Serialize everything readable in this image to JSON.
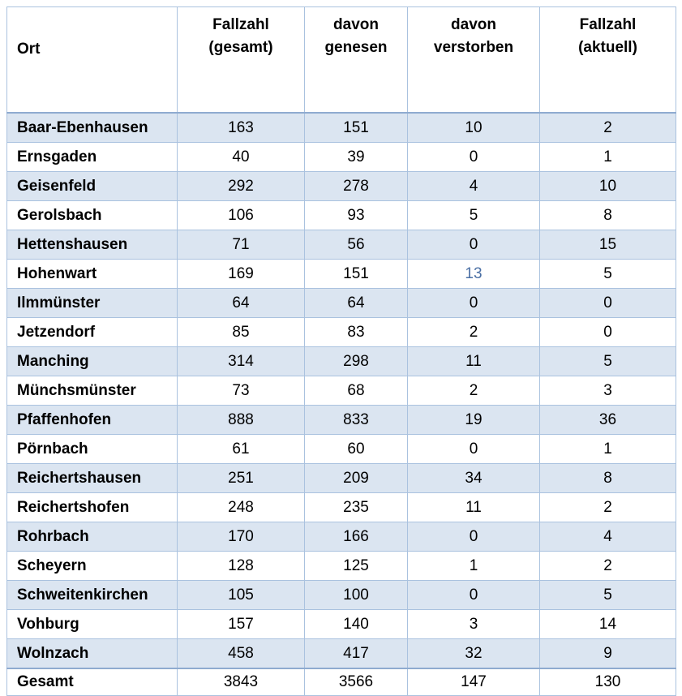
{
  "table": {
    "accent_color": "#4a6fa4",
    "stripe_color": "#dbe5f1",
    "border_color": "#aac2df",
    "heavy_border_color": "#8fabd0",
    "columns": [
      {
        "label": "Ort"
      },
      {
        "line1": "Fallzahl",
        "line2": "(gesamt)"
      },
      {
        "line1": "davon",
        "line2": "genesen"
      },
      {
        "line1": "davon",
        "line2": "verstorben"
      },
      {
        "line1": "Fallzahl",
        "line2": "(aktuell)"
      }
    ],
    "rows": [
      {
        "ort": "Baar-Ebenhausen",
        "gesamt": "163",
        "genesen": "151",
        "verstorben": "10",
        "aktuell": "2"
      },
      {
        "ort": "Ernsgaden",
        "gesamt": "40",
        "genesen": "39",
        "verstorben": "0",
        "aktuell": "1"
      },
      {
        "ort": "Geisenfeld",
        "gesamt": "292",
        "genesen": "278",
        "verstorben": "4",
        "aktuell": "10"
      },
      {
        "ort": "Gerolsbach",
        "gesamt": "106",
        "genesen": "93",
        "verstorben": "5",
        "aktuell": "8"
      },
      {
        "ort": "Hettenshausen",
        "gesamt": "71",
        "genesen": "56",
        "verstorben": "0",
        "aktuell": "15"
      },
      {
        "ort": "Hohenwart",
        "gesamt": "169",
        "genesen": "151",
        "verstorben": "13",
        "aktuell": "5"
      },
      {
        "ort": "Ilmmünster",
        "gesamt": "64",
        "genesen": "64",
        "verstorben": "0",
        "aktuell": "0"
      },
      {
        "ort": "Jetzendorf",
        "gesamt": "85",
        "genesen": "83",
        "verstorben": "2",
        "aktuell": "0"
      },
      {
        "ort": "Manching",
        "gesamt": "314",
        "genesen": "298",
        "verstorben": "11",
        "aktuell": "5"
      },
      {
        "ort": "Münchsmünster",
        "gesamt": "73",
        "genesen": "68",
        "verstorben": "2",
        "aktuell": "3"
      },
      {
        "ort": "Pfaffenhofen",
        "gesamt": "888",
        "genesen": "833",
        "verstorben": "19",
        "aktuell": "36"
      },
      {
        "ort": "Pörnbach",
        "gesamt": "61",
        "genesen": "60",
        "verstorben": "0",
        "aktuell": "1"
      },
      {
        "ort": "Reichertshausen",
        "gesamt": "251",
        "genesen": "209",
        "verstorben": "34",
        "aktuell": "8"
      },
      {
        "ort": "Reichertshofen",
        "gesamt": "248",
        "genesen": "235",
        "verstorben": "11",
        "aktuell": "2"
      },
      {
        "ort": "Rohrbach",
        "gesamt": "170",
        "genesen": "166",
        "verstorben": "0",
        "aktuell": "4"
      },
      {
        "ort": "Scheyern",
        "gesamt": "128",
        "genesen": "125",
        "verstorben": "1",
        "aktuell": "2"
      },
      {
        "ort": "Schweitenkirchen",
        "gesamt": "105",
        "genesen": "100",
        "verstorben": "0",
        "aktuell": "5"
      },
      {
        "ort": "Vohburg",
        "gesamt": "157",
        "genesen": "140",
        "verstorben": "3",
        "aktuell": "14"
      },
      {
        "ort": "Wolnzach",
        "gesamt": "458",
        "genesen": "417",
        "verstorben": "32",
        "aktuell": "9"
      }
    ],
    "total": {
      "ort": "Gesamt",
      "gesamt": "3843",
      "genesen": "3566",
      "verstorben": "147",
      "aktuell": "130"
    }
  }
}
